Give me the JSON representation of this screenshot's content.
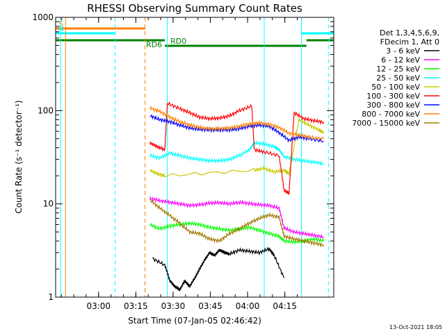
{
  "chart_data": {
    "type": "line",
    "title": "RHESSI Observing Summary Count Rates",
    "xlabel": "Start Time (07-Jan-05 02:46:42)",
    "ylabel": "Count Rate (s⁻¹ detector⁻¹)",
    "yscale": "log",
    "ylim": [
      1,
      1000
    ],
    "xlim_min_from_start": [
      -4,
      108
    ],
    "x_ticks": [
      "03:00",
      "03:15",
      "03:30",
      "03:45",
      "04:00",
      "04:15"
    ],
    "y_ticks": [
      "1",
      "10",
      "100",
      "1000"
    ],
    "legend_header": [
      "Det 1,3,4,5,6,9,",
      "FDecim 1, Att 0"
    ],
    "legend_position": "right",
    "series": [
      {
        "name": "3 - 6 keV",
        "color": "#000000",
        "points": [
          [
            35,
            2.6
          ],
          [
            40,
            2.2
          ],
          [
            42,
            1.5
          ],
          [
            44,
            1.3
          ],
          [
            46,
            1.2
          ],
          [
            48,
            1.5
          ],
          [
            50,
            1.3
          ],
          [
            52,
            1.6
          ],
          [
            54,
            2.0
          ],
          [
            56,
            2.5
          ],
          [
            58,
            3.0
          ],
          [
            60,
            2.8
          ],
          [
            62,
            3.2
          ],
          [
            64,
            3.0
          ],
          [
            66,
            2.9
          ],
          [
            70,
            3.2
          ],
          [
            74,
            3.1
          ],
          [
            78,
            3.0
          ],
          [
            82,
            3.3
          ],
          [
            84,
            2.8
          ],
          [
            88,
            1.6
          ]
        ]
      },
      {
        "name": "6 - 12 keV",
        "color": "#ff00ff",
        "points": [
          [
            34,
            11.5
          ],
          [
            38,
            10.8
          ],
          [
            42,
            10.4
          ],
          [
            46,
            10.0
          ],
          [
            50,
            9.6
          ],
          [
            54,
            9.8
          ],
          [
            58,
            10.2
          ],
          [
            62,
            10.3
          ],
          [
            66,
            10.0
          ],
          [
            70,
            10.4
          ],
          [
            74,
            10.1
          ],
          [
            78,
            9.8
          ],
          [
            82,
            9.6
          ],
          [
            86,
            9.0
          ],
          [
            88,
            5.5
          ],
          [
            92,
            5.0
          ],
          [
            96,
            4.8
          ],
          [
            100,
            4.6
          ],
          [
            104,
            4.4
          ]
        ]
      },
      {
        "name": "12 - 25 keV",
        "color": "#00ff00",
        "points": [
          [
            34,
            6.0
          ],
          [
            38,
            5.4
          ],
          [
            42,
            5.8
          ],
          [
            46,
            6.0
          ],
          [
            50,
            6.2
          ],
          [
            54,
            6.0
          ],
          [
            58,
            5.6
          ],
          [
            62,
            5.4
          ],
          [
            66,
            5.2
          ],
          [
            70,
            5.4
          ],
          [
            74,
            5.6
          ],
          [
            78,
            5.2
          ],
          [
            82,
            4.8
          ],
          [
            86,
            4.5
          ],
          [
            88,
            4.0
          ],
          [
            92,
            3.9
          ],
          [
            96,
            4.0
          ],
          [
            100,
            4.2
          ],
          [
            104,
            4.0
          ]
        ]
      },
      {
        "name": "25 - 50 keV",
        "color": "#00ffff",
        "points": [
          [
            34,
            33
          ],
          [
            38,
            31
          ],
          [
            42,
            35
          ],
          [
            46,
            33
          ],
          [
            50,
            31
          ],
          [
            54,
            30
          ],
          [
            58,
            29
          ],
          [
            62,
            29
          ],
          [
            66,
            30
          ],
          [
            70,
            33
          ],
          [
            74,
            38
          ],
          [
            76,
            45
          ],
          [
            80,
            44
          ],
          [
            84,
            41
          ],
          [
            86,
            38
          ],
          [
            88,
            32
          ],
          [
            92,
            30
          ],
          [
            96,
            29
          ],
          [
            100,
            28
          ],
          [
            104,
            27
          ]
        ]
      },
      {
        "name": "50 - 100 keV",
        "color": "#c8c800",
        "points": [
          [
            34,
            23
          ],
          [
            37,
            21
          ],
          [
            40,
            20
          ],
          [
            76,
            23
          ],
          [
            80,
            24
          ],
          [
            84,
            22
          ],
          [
            88,
            23
          ],
          [
            90,
            21
          ],
          [
            94,
            80
          ],
          [
            98,
            70
          ],
          [
            102,
            62
          ],
          [
            104,
            58
          ]
        ]
      },
      {
        "name": "100 - 300 keV",
        "color": "#ff0000",
        "points": [
          [
            34,
            45
          ],
          [
            37,
            41
          ],
          [
            40,
            38
          ],
          [
            41,
            120
          ],
          [
            46,
            105
          ],
          [
            50,
            95
          ],
          [
            54,
            85
          ],
          [
            58,
            82
          ],
          [
            62,
            83
          ],
          [
            66,
            88
          ],
          [
            70,
            100
          ],
          [
            75,
            112
          ],
          [
            76,
            38
          ],
          [
            80,
            36
          ],
          [
            86,
            33
          ],
          [
            88,
            14
          ],
          [
            90,
            13
          ],
          [
            92,
            95
          ],
          [
            96,
            82
          ],
          [
            100,
            78
          ],
          [
            104,
            75
          ]
        ]
      },
      {
        "name": "300 - 800 keV",
        "color": "#0000ff",
        "points": [
          [
            34,
            88
          ],
          [
            38,
            80
          ],
          [
            42,
            76
          ],
          [
            46,
            70
          ],
          [
            50,
            65
          ],
          [
            54,
            63
          ],
          [
            58,
            62
          ],
          [
            62,
            62
          ],
          [
            66,
            62
          ],
          [
            70,
            64
          ],
          [
            74,
            68
          ],
          [
            78,
            70
          ],
          [
            82,
            68
          ],
          [
            86,
            58
          ],
          [
            90,
            48
          ],
          [
            94,
            52
          ],
          [
            98,
            50
          ],
          [
            104,
            47
          ]
        ]
      },
      {
        "name": "800 - 7000 keV",
        "color": "#ff8000",
        "points": [
          [
            34,
            106
          ],
          [
            38,
            98
          ],
          [
            42,
            85
          ],
          [
            46,
            76
          ],
          [
            50,
            70
          ],
          [
            54,
            66
          ],
          [
            58,
            64
          ],
          [
            62,
            64
          ],
          [
            66,
            65
          ],
          [
            70,
            68
          ],
          [
            74,
            72
          ],
          [
            78,
            74
          ],
          [
            82,
            71
          ],
          [
            86,
            66
          ],
          [
            90,
            57
          ],
          [
            94,
            55
          ],
          [
            98,
            52
          ],
          [
            104,
            50
          ]
        ]
      },
      {
        "name": "7000 - 15000 keV",
        "color": "#a07800",
        "points": [
          [
            34,
            11
          ],
          [
            38,
            9
          ],
          [
            42,
            7.5
          ],
          [
            46,
            6.2
          ],
          [
            50,
            5.0
          ],
          [
            54,
            4.8
          ],
          [
            58,
            4.2
          ],
          [
            62,
            4.0
          ],
          [
            66,
            4.8
          ],
          [
            70,
            5.4
          ],
          [
            74,
            6.2
          ],
          [
            78,
            7.0
          ],
          [
            82,
            7.6
          ],
          [
            86,
            7.2
          ],
          [
            88,
            4.5
          ],
          [
            92,
            4.2
          ],
          [
            96,
            4.0
          ],
          [
            100,
            3.8
          ],
          [
            104,
            3.6
          ]
        ]
      }
    ],
    "status_bars": [
      {
        "label": "S",
        "color": "#ff8000",
        "from": -4,
        "to": 32
      },
      {
        "label": "N",
        "color": "#00ffff",
        "from": -4,
        "to": 20
      },
      {
        "label": "",
        "color": "#00ffff",
        "from": 95,
        "to": 108
      },
      {
        "label": "RD6",
        "color": "#008000",
        "from": -4,
        "to": 40
      },
      {
        "label": "RD0",
        "color": "#008000",
        "from": 40,
        "to": 80
      },
      {
        "label": "",
        "color": "#008000",
        "from": 80,
        "to": 97
      },
      {
        "label": "",
        "color": "#008000",
        "from": 97,
        "to": 108
      }
    ],
    "vertical_markers": [
      {
        "color": "#00ffff",
        "style": "solid",
        "at": -2
      },
      {
        "color": "#ff8000",
        "style": "solid",
        "at": 0
      },
      {
        "color": "#00ffff",
        "style": "dashed",
        "at": 20
      },
      {
        "color": "#ff8000",
        "style": "dashed",
        "at": 32
      },
      {
        "color": "#00ffff",
        "style": "solid",
        "at": 41
      },
      {
        "color": "#00ffff",
        "style": "solid",
        "at": 80
      },
      {
        "color": "#00ffff",
        "style": "solid",
        "at": 95
      },
      {
        "color": "#00ffff",
        "style": "dashed",
        "at": 106
      }
    ]
  },
  "footer_stamp": "13-Oct-2021 18:05"
}
